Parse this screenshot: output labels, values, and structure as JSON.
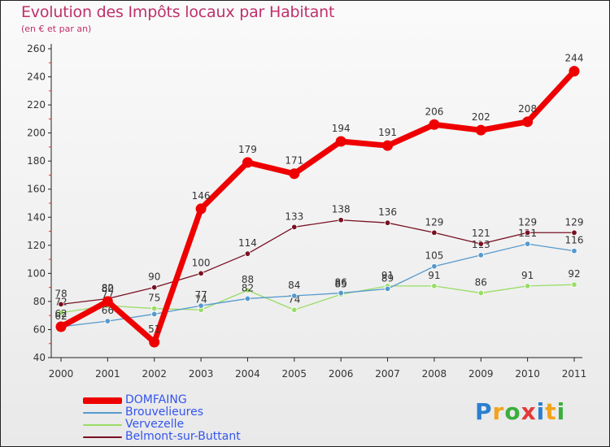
{
  "chart_data": {
    "type": "line",
    "title": "Evolution des Impôts locaux par Habitant",
    "subtitle": "(en € et par an)",
    "xlabel": "",
    "ylabel": "",
    "x": [
      "2000",
      "2001",
      "2002",
      "2003",
      "2004",
      "2005",
      "2006",
      "2007",
      "2008",
      "2009",
      "2010",
      "2011"
    ],
    "ylim": [
      40,
      260
    ],
    "yticks": [
      40,
      60,
      80,
      100,
      120,
      140,
      160,
      180,
      200,
      220,
      240,
      260
    ],
    "series": [
      {
        "name": "Vervezelle",
        "color": "#99dd66",
        "values": [
          72,
          77,
          75,
          74,
          88,
          74,
          85,
          91,
          91,
          86,
          91,
          92
        ],
        "labels": [
          "72",
          "77",
          "75",
          "74",
          "88",
          "74",
          "85",
          "91",
          "91",
          "86",
          "91",
          "92"
        ]
      },
      {
        "name": "Brouvelieures",
        "color": "#5599cc",
        "values": [
          62,
          66,
          71,
          77,
          82,
          84,
          86,
          89,
          105,
          113,
          121,
          116
        ],
        "labels": [
          "62",
          "66",
          "",
          "77",
          "82",
          "84",
          "86",
          "89",
          "105",
          "113",
          "121",
          "116"
        ]
      },
      {
        "name": "Belmont-sur-Buttant",
        "color": "#771122",
        "values": [
          78,
          82,
          90,
          100,
          114,
          133,
          138,
          136,
          129,
          121,
          129,
          129
        ],
        "labels": [
          "78",
          "82",
          "90",
          "100",
          "114",
          "133",
          "138",
          "136",
          "129",
          "121",
          "129",
          "129"
        ]
      },
      {
        "name": "DOMFAING",
        "color": "#ee0000",
        "values": [
          62,
          80,
          51,
          146,
          179,
          171,
          194,
          191,
          206,
          202,
          208,
          244
        ],
        "labels": [
          "62",
          "80",
          "51",
          "146",
          "179",
          "171",
          "194",
          "191",
          "206",
          "202",
          "208",
          "244"
        ]
      }
    ],
    "legend_order": [
      "DOMFAING",
      "Brouvelieures",
      "Vervezelle",
      "Belmont-sur-Buttant"
    ],
    "legend_position": "bottom-left",
    "grid": false
  },
  "legend": [
    {
      "name": "DOMFAING",
      "color": "#ee0000",
      "text_color": "#3355ee"
    },
    {
      "name": "Brouvelieures",
      "color": "#5599cc",
      "text_color": "#3355ee"
    },
    {
      "name": "Vervezelle",
      "color": "#99dd66",
      "text_color": "#3355ee"
    },
    {
      "name": "Belmont-sur-Buttant",
      "color": "#771122",
      "text_color": "#3355ee"
    }
  ],
  "logo": {
    "letters": [
      "P",
      "r",
      "o",
      "x",
      "i",
      "t",
      "i"
    ],
    "colors": [
      "#2b7fd1",
      "#f3a31a",
      "#3cae3c",
      "#e23a3a",
      "#2b7fd1",
      "#f3a31a",
      "#3cae3c"
    ]
  }
}
